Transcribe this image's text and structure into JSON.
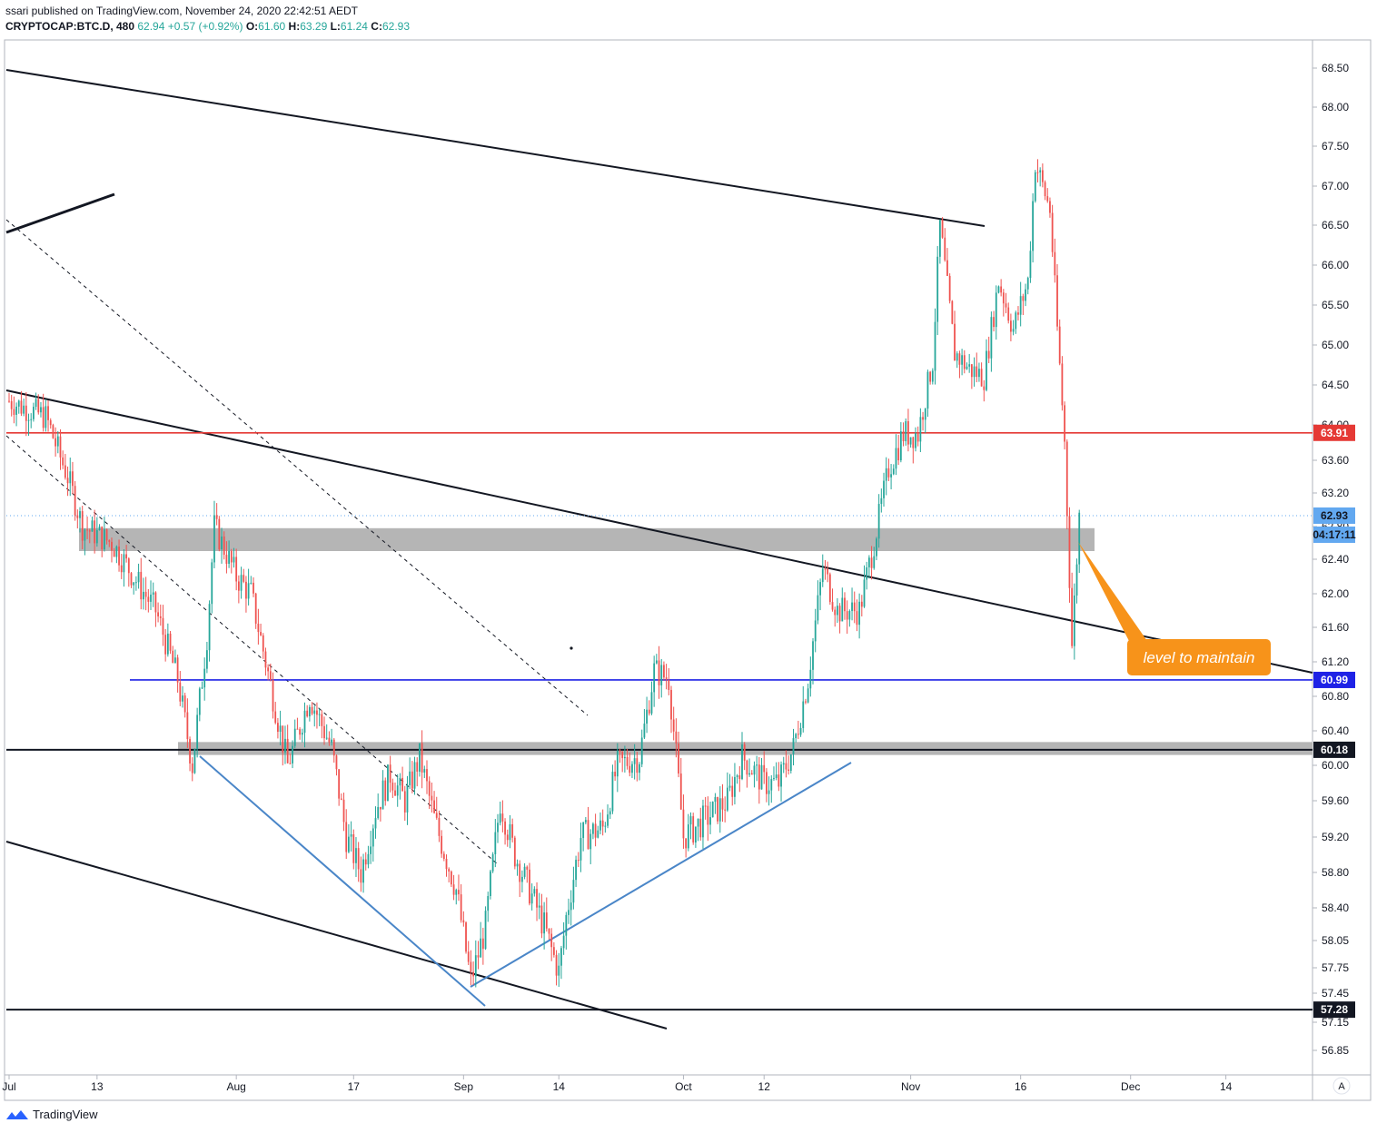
{
  "header": {
    "published": "ssari published on TradingView.com, November 24, 2020 22:42:51 AEDT",
    "symbol": "CRYPTOCAP:BTC.D, 480",
    "last": "62.94",
    "change": "+0.57 (+0.92%)",
    "o_label": "O:",
    "o_value": "61.60",
    "h_label": "H:",
    "h_value": "63.29",
    "l_label": "L:",
    "l_value": "61.24",
    "c_label": "C:",
    "c_value": "62.93"
  },
  "footer": {
    "brand": "TradingView"
  },
  "axis_corner": "A",
  "colors": {
    "up": "#26a69a",
    "down": "#ef5350",
    "support_red": "#e53935",
    "support_blue": "#1e22e6",
    "zone": "#b5b5b5",
    "trend_blue": "#4a86c8",
    "callout": "#f7931a",
    "price_tag": "#62a8f0"
  },
  "chart_data": {
    "type": "candlestick",
    "title": "",
    "y_axis": {
      "ticks": [
        "68.50",
        "68.00",
        "67.50",
        "67.00",
        "66.50",
        "66.00",
        "65.50",
        "65.00",
        "64.50",
        "64.00",
        "63.60",
        "63.20",
        "62.80",
        "62.40",
        "62.00",
        "61.60",
        "61.20",
        "60.80",
        "60.40",
        "60.00",
        "59.60",
        "59.20",
        "58.80",
        "58.40",
        "58.05",
        "57.75",
        "57.45",
        "57.15",
        "56.85"
      ]
    },
    "x_axis": {
      "ticks": [
        "Jul",
        "13",
        "Aug",
        "17",
        "Sep",
        "14",
        "Oct",
        "12",
        "Nov",
        "16",
        "Dec",
        "14"
      ]
    },
    "price_labels": [
      {
        "value": "63.91",
        "kind": "red-level"
      },
      {
        "value": "62.93",
        "kind": "last-price"
      },
      {
        "value": "04:17:11",
        "kind": "countdown"
      },
      {
        "value": "60.99",
        "kind": "blue-level"
      },
      {
        "value": "60.18",
        "kind": "black-level"
      },
      {
        "value": "57.28",
        "kind": "black-level"
      }
    ],
    "horizontal_levels": [
      {
        "value": 63.91,
        "color": "red"
      },
      {
        "value": 60.99,
        "color": "blue"
      },
      {
        "value": 60.18,
        "color": "black"
      },
      {
        "value": 57.28,
        "color": "black"
      }
    ],
    "zones": [
      {
        "from": 62.5,
        "to": 62.78
      },
      {
        "from": 60.12,
        "to": 60.27
      }
    ],
    "annotation": "level to maintain",
    "close_path": [
      [
        "Jul 1",
        64.3
      ],
      [
        "Jul 6",
        64.1
      ],
      [
        "Jul 9",
        63.4
      ],
      [
        "Jul 11",
        62.8
      ],
      [
        "Jul 15",
        62.6
      ],
      [
        "Jul 18",
        62.2
      ],
      [
        "Jul 21",
        61.8
      ],
      [
        "Jul 24",
        61.0
      ],
      [
        "Jul 26",
        60.0
      ],
      [
        "Jul 28",
        61.5
      ],
      [
        "Jul 29",
        62.8
      ],
      [
        "Aug 1",
        62.2
      ],
      [
        "Aug 3",
        62.0
      ],
      [
        "Aug 6",
        60.8
      ],
      [
        "Aug 8",
        60.0
      ],
      [
        "Aug 11",
        60.8
      ],
      [
        "Aug 14",
        60.2
      ],
      [
        "Aug 16",
        59.2
      ],
      [
        "Aug 18",
        58.8
      ],
      [
        "Aug 20",
        59.5
      ],
      [
        "Aug 22",
        59.9
      ],
      [
        "Aug 24",
        59.6
      ],
      [
        "Aug 26",
        60.1
      ],
      [
        "Aug 28",
        59.4
      ],
      [
        "Aug 31",
        58.6
      ],
      [
        "Sep 2",
        57.6
      ],
      [
        "Sep 4",
        58.2
      ],
      [
        "Sep 6",
        59.6
      ],
      [
        "Sep 8",
        59.0
      ],
      [
        "Sep 10",
        58.6
      ],
      [
        "Sep 12",
        58.2
      ],
      [
        "Sep 14",
        57.7
      ],
      [
        "Sep 15",
        58.3
      ],
      [
        "Sep 17",
        59.2
      ],
      [
        "Sep 20",
        59.3
      ],
      [
        "Sep 22",
        60.0
      ],
      [
        "Sep 25",
        60.1
      ],
      [
        "Sep 27",
        61.1
      ],
      [
        "Sep 29",
        61.0
      ],
      [
        "Oct 1",
        59.2
      ],
      [
        "Oct 4",
        59.4
      ],
      [
        "Oct 7",
        59.6
      ],
      [
        "Oct 9",
        60.1
      ],
      [
        "Oct 12",
        59.8
      ],
      [
        "Oct 14",
        59.8
      ],
      [
        "Oct 16",
        60.2
      ],
      [
        "Oct 18",
        61.0
      ],
      [
        "Oct 20",
        62.3
      ],
      [
        "Oct 22",
        61.8
      ],
      [
        "Oct 25",
        61.8
      ],
      [
        "Oct 27",
        62.6
      ],
      [
        "Oct 29",
        63.5
      ],
      [
        "Oct 31",
        63.9
      ],
      [
        "Nov 2",
        63.9
      ],
      [
        "Nov 4",
        64.8
      ],
      [
        "Nov 5",
        66.5
      ],
      [
        "Nov 7",
        64.9
      ],
      [
        "Nov 9",
        64.7
      ],
      [
        "Nov 11",
        64.6
      ],
      [
        "Nov 13",
        65.8
      ],
      [
        "Nov 15",
        65.2
      ],
      [
        "Nov 17",
        65.8
      ],
      [
        "Nov 18",
        67.3
      ],
      [
        "Nov 20",
        66.7
      ],
      [
        "Nov 21",
        65.2
      ],
      [
        "Nov 22",
        63.8
      ],
      [
        "Nov 23",
        61.4
      ],
      [
        "Nov 24",
        62.93
      ]
    ]
  }
}
